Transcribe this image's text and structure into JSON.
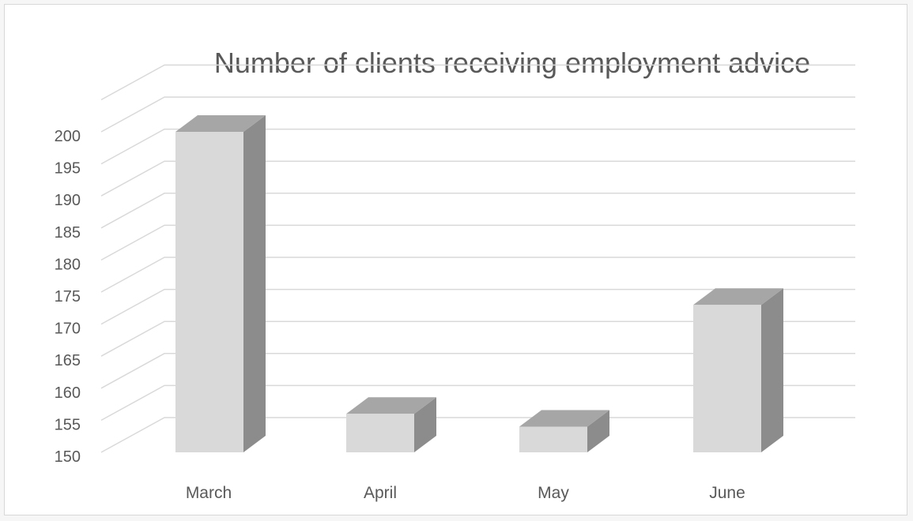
{
  "chart_data": {
    "type": "bar",
    "title": "Number of clients receiving employment advice",
    "categories": [
      "March",
      "April",
      "May",
      "June"
    ],
    "values": [
      200,
      156,
      154,
      173
    ],
    "ylim": [
      150,
      200
    ],
    "yticks": [
      150,
      155,
      160,
      165,
      170,
      175,
      180,
      185,
      190,
      195,
      200
    ],
    "xlabel": "",
    "ylabel": "",
    "grid": true,
    "legend": "none",
    "style": "3d-column",
    "colors": {
      "bar_front": "#d9d9d9",
      "bar_top": "#a6a6a6",
      "bar_side": "#8c8c8c",
      "gridline": "#d9d9d9",
      "text": "#595959"
    }
  }
}
